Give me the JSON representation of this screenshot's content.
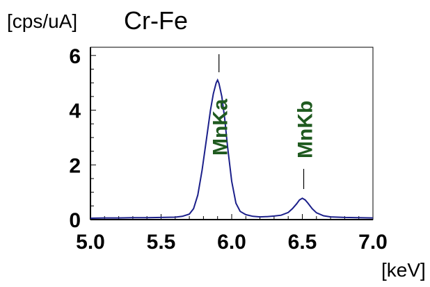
{
  "chart_data": {
    "type": "line",
    "title": "Cr-Fe",
    "ylabel": "[cps/uA]",
    "xlabel": "[keV]",
    "xlim": [
      5.0,
      7.0
    ],
    "ylim": [
      0,
      6.3
    ],
    "x_ticks": [
      "5.0",
      "5.5",
      "6.0",
      "6.5",
      "7.0"
    ],
    "y_ticks": [
      "0",
      "2",
      "4",
      "6"
    ],
    "line_color": "#1b1f8a",
    "label_color": "#1f5a1f",
    "x": [
      5.0,
      5.1,
      5.2,
      5.3,
      5.4,
      5.5,
      5.6,
      5.65,
      5.7,
      5.73,
      5.76,
      5.79,
      5.82,
      5.85,
      5.87,
      5.89,
      5.9,
      5.91,
      5.93,
      5.95,
      5.97,
      6.0,
      6.03,
      6.06,
      6.1,
      6.15,
      6.2,
      6.25,
      6.3,
      6.35,
      6.4,
      6.43,
      6.46,
      6.48,
      6.5,
      6.52,
      6.54,
      6.57,
      6.6,
      6.65,
      6.7,
      6.8,
      6.9,
      7.0
    ],
    "y": [
      0.05,
      0.06,
      0.06,
      0.07,
      0.07,
      0.08,
      0.09,
      0.12,
      0.2,
      0.4,
      0.9,
      1.8,
      2.9,
      4.0,
      4.6,
      5.0,
      5.1,
      4.98,
      4.5,
      3.7,
      2.7,
      1.4,
      0.6,
      0.3,
      0.18,
      0.12,
      0.1,
      0.11,
      0.13,
      0.16,
      0.26,
      0.4,
      0.58,
      0.72,
      0.78,
      0.72,
      0.6,
      0.4,
      0.25,
      0.14,
      0.1,
      0.08,
      0.07,
      0.06
    ],
    "peaks": [
      {
        "label": "MnKa",
        "x": 5.9
      },
      {
        "label": "MnKb",
        "x": 6.5
      }
    ]
  }
}
